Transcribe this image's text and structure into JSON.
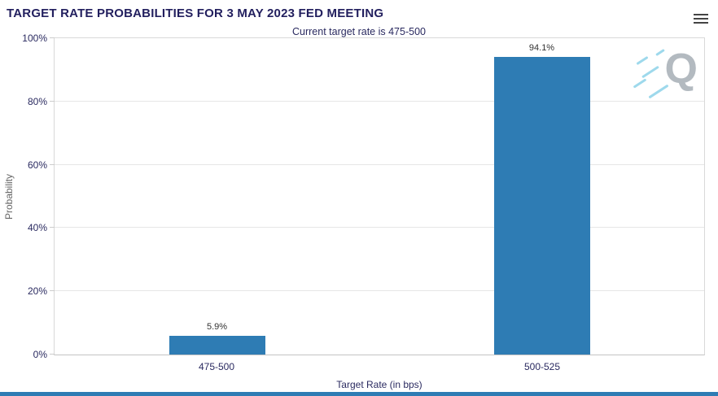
{
  "header": {
    "title": "TARGET RATE PROBABILITIES FOR 3 MAY 2023 FED MEETING"
  },
  "colors": {
    "bar": "#2e7cb4",
    "title_text": "#221f5e",
    "axis_text": "#2a2a60",
    "data_label_text": "#333333",
    "gridline": "#e6e6e6",
    "footer_strip": "#2e7cb4",
    "watermark_q": "#b3bac0",
    "watermark_dash": "#9ed9ec"
  },
  "chart_data": {
    "type": "bar",
    "title": "TARGET RATE PROBABILITIES FOR 3 MAY 2023 FED MEETING",
    "subtitle": "Current target rate is 475-500",
    "categories": [
      "475-500",
      "500-525"
    ],
    "values": [
      5.9,
      94.1
    ],
    "value_labels": [
      "5.9%",
      "94.1%"
    ],
    "xlabel": "Target Rate (in bps)",
    "ylabel": "Probability",
    "ylim": [
      0,
      100
    ],
    "yticks": [
      0,
      20,
      40,
      60,
      80,
      100
    ],
    "ytick_labels": [
      "0%",
      "20%",
      "40%",
      "60%",
      "80%",
      "100%"
    ],
    "grid": true,
    "legend": "none",
    "watermark": "Q"
  }
}
